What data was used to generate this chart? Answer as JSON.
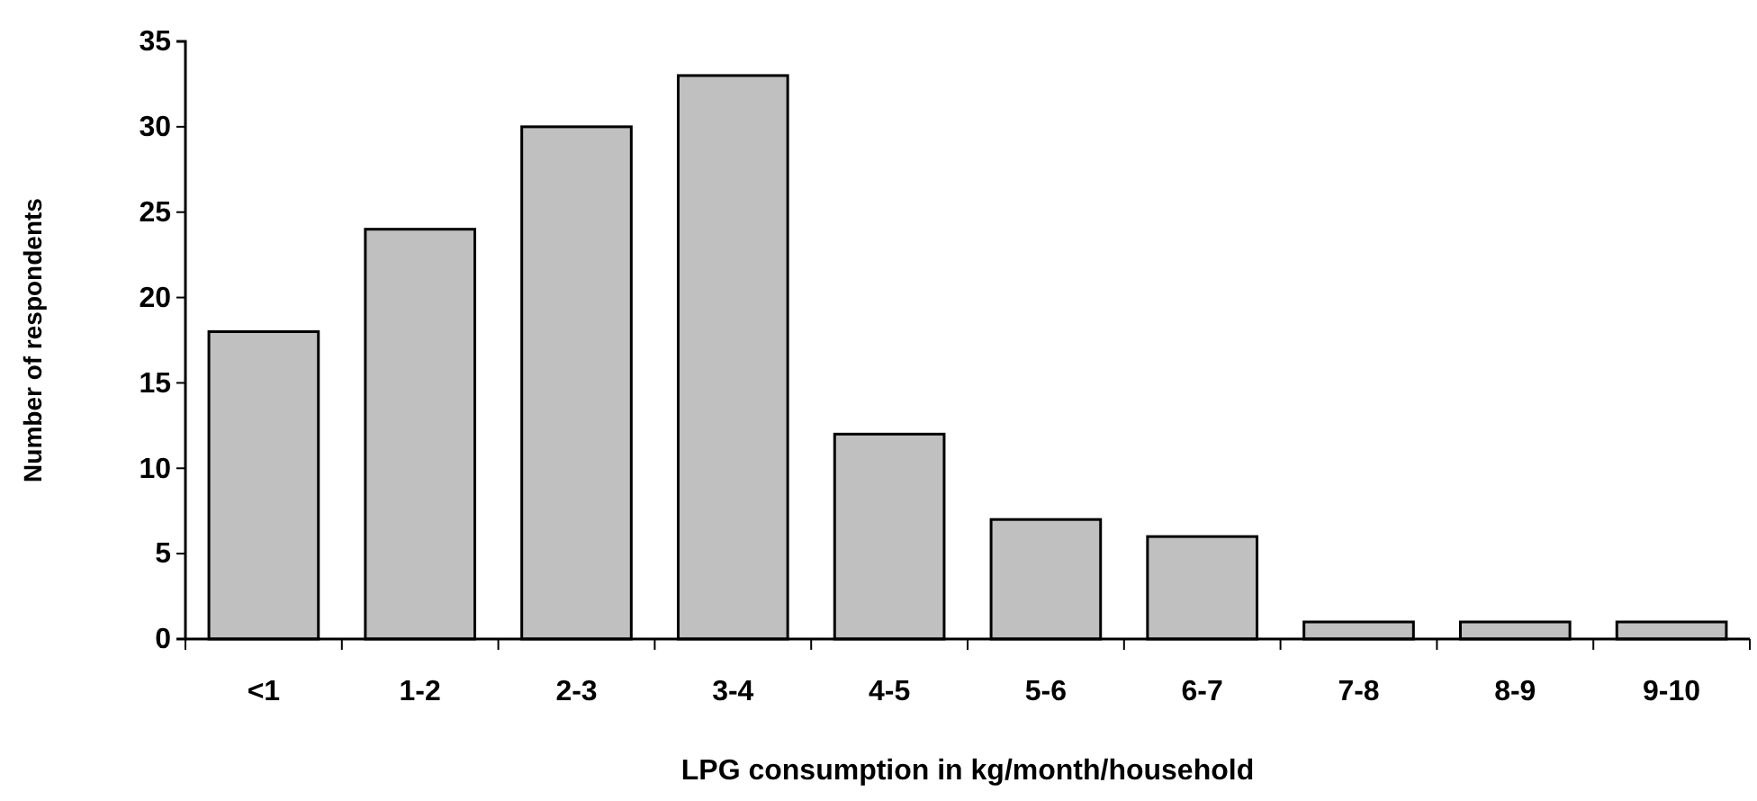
{
  "chart_data": {
    "type": "bar",
    "xlabel": "LPG consumption in kg/month/household",
    "ylabel": "Number of respondents",
    "categories": [
      "<1",
      "1-2",
      "2-3",
      "3-4",
      "4-5",
      "5-6",
      "6-7",
      "7-8",
      "8-9",
      "9-10"
    ],
    "values": [
      18,
      24,
      30,
      33,
      12,
      7,
      6,
      1,
      1,
      1
    ],
    "color": "#c0c0c0",
    "ylim": [
      0,
      35
    ],
    "yticks": [
      0,
      5,
      10,
      15,
      20,
      25,
      30,
      35
    ],
    "grid": false
  }
}
